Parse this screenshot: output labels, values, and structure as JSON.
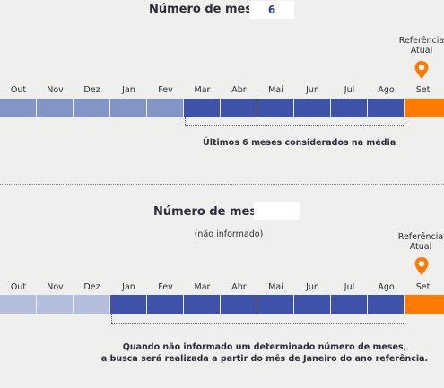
{
  "colors": {
    "past_light": "#8395c7",
    "past_pale": "#b3bedd",
    "selected": "#3d52a8",
    "reference": "#ff7a00"
  },
  "section1": {
    "label": "Número de meses",
    "value": "6",
    "months": [
      "Out",
      "Nov",
      "Dez",
      "Jan",
      "Fev",
      "Mar",
      "Abr",
      "Mai",
      "Jun",
      "Jul",
      "Ago",
      "Set"
    ],
    "segment_types": [
      "past_light",
      "past_light",
      "past_light",
      "past_light",
      "past_light",
      "selected",
      "selected",
      "selected",
      "selected",
      "selected",
      "selected",
      "reference"
    ],
    "reference_line1": "Referência",
    "reference_line2": "Atual",
    "note": "Últimos 6 meses considerados na média"
  },
  "section2": {
    "label": "Número de meses",
    "value": "",
    "subtitle": "(não informado)",
    "months": [
      "Out",
      "Nov",
      "Dez",
      "Jan",
      "Fev",
      "Mar",
      "Abr",
      "Mai",
      "Jun",
      "Jul",
      "Ago",
      "Set"
    ],
    "segment_types": [
      "past_pale",
      "past_pale",
      "past_pale",
      "selected",
      "selected",
      "selected",
      "selected",
      "selected",
      "selected",
      "selected",
      "selected",
      "reference"
    ],
    "reference_line1": "Referência",
    "reference_line2": "Atual",
    "note_line1": "Quando não informado um determinado número de meses,",
    "note_line2": "a busca será realizada a partir do mês de Janeiro do ano referência."
  }
}
